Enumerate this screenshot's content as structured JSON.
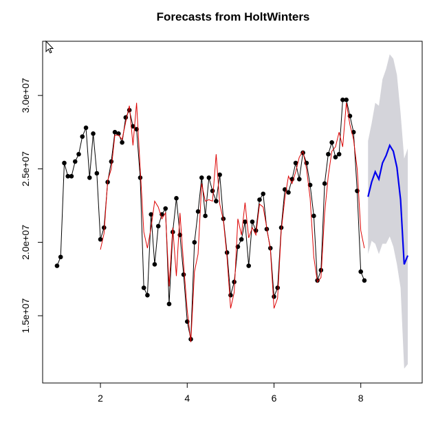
{
  "chart_data": {
    "type": "line",
    "title": "Forecasts from HoltWinters",
    "x": [
      1,
      1.083,
      1.167,
      1.25,
      1.333,
      1.417,
      1.5,
      1.583,
      1.667,
      1.75,
      1.833,
      1.917,
      2,
      2.083,
      2.167,
      2.25,
      2.333,
      2.417,
      2.5,
      2.583,
      2.667,
      2.75,
      2.833,
      2.917,
      3,
      3.083,
      3.167,
      3.25,
      3.333,
      3.417,
      3.5,
      3.583,
      3.667,
      3.75,
      3.833,
      3.917,
      4,
      4.083,
      4.167,
      4.25,
      4.333,
      4.417,
      4.5,
      4.583,
      4.667,
      4.75,
      4.833,
      4.917,
      5,
      5.083,
      5.167,
      5.25,
      5.333,
      5.417,
      5.5,
      5.583,
      5.667,
      5.75,
      5.833,
      5.917,
      6,
      6.083,
      6.167,
      6.25,
      6.333,
      6.417,
      6.5,
      6.583,
      6.667,
      6.75,
      6.833,
      6.917,
      7,
      7.083,
      7.167,
      7.25,
      7.333,
      7.417,
      7.5,
      7.583,
      7.667,
      7.75,
      7.833,
      7.917,
      8,
      8.083,
      8.167,
      8.25,
      8.333,
      8.417,
      8.5,
      8.583,
      8.667,
      8.75,
      8.833,
      8.917,
      9,
      9.083
    ],
    "band": {
      "color": "#d4d4da",
      "lower": [
        null,
        null,
        null,
        null,
        null,
        null,
        null,
        null,
        null,
        null,
        null,
        null,
        null,
        null,
        null,
        null,
        null,
        null,
        null,
        null,
        null,
        null,
        null,
        null,
        null,
        null,
        null,
        null,
        null,
        null,
        null,
        null,
        null,
        null,
        null,
        null,
        null,
        null,
        null,
        null,
        null,
        null,
        null,
        null,
        null,
        null,
        null,
        null,
        null,
        null,
        null,
        null,
        null,
        null,
        null,
        null,
        null,
        null,
        null,
        null,
        null,
        null,
        null,
        null,
        null,
        null,
        null,
        null,
        null,
        null,
        null,
        null,
        null,
        null,
        null,
        null,
        null,
        null,
        null,
        null,
        null,
        null,
        null,
        null,
        null,
        null,
        19200000,
        20100000,
        19900000,
        19200000,
        19900000,
        19900000,
        20400000,
        19700000,
        18500000,
        16900000,
        11400000,
        11700000
      ],
      "upper": [
        null,
        null,
        null,
        null,
        null,
        null,
        null,
        null,
        null,
        null,
        null,
        null,
        null,
        null,
        null,
        null,
        null,
        null,
        null,
        null,
        null,
        null,
        null,
        null,
        null,
        null,
        null,
        null,
        null,
        null,
        null,
        null,
        null,
        null,
        null,
        null,
        null,
        null,
        null,
        null,
        null,
        null,
        null,
        null,
        null,
        null,
        null,
        null,
        null,
        null,
        null,
        null,
        null,
        null,
        null,
        null,
        null,
        null,
        null,
        null,
        null,
        null,
        null,
        null,
        null,
        null,
        null,
        null,
        null,
        null,
        null,
        null,
        null,
        null,
        null,
        null,
        null,
        null,
        null,
        null,
        null,
        null,
        null,
        null,
        null,
        null,
        26900000,
        28100000,
        29500000,
        29300000,
        31100000,
        31800000,
        32800000,
        32500000,
        31400000,
        28800000,
        25700000,
        26400000
      ]
    },
    "series": [
      {
        "color": "#000000",
        "markers": true,
        "width": 1,
        "values": [
          18400000,
          19000000,
          25400000,
          24500000,
          24500000,
          25500000,
          26000000,
          27200000,
          27800000,
          24400000,
          27400000,
          24700000,
          20200000,
          21000000,
          24100000,
          25500000,
          27500000,
          27400000,
          26800000,
          28500000,
          29000000,
          27900000,
          27700000,
          24400000,
          16900000,
          16400000,
          21900000,
          18500000,
          21100000,
          21900000,
          22300000,
          15800000,
          20700000,
          23000000,
          20500000,
          17800000,
          14600000,
          13400000,
          20000000,
          22100000,
          24400000,
          21800000,
          24400000,
          23500000,
          22800000,
          24600000,
          21600000,
          19300000,
          16400000,
          17300000,
          19700000,
          20200000,
          21400000,
          18400000,
          21400000,
          20800000,
          22900000,
          23300000,
          20900000,
          19600000,
          16300000,
          16900000,
          21000000,
          23600000,
          23400000,
          24300000,
          25400000,
          24300000,
          26100000,
          25400000,
          23900000,
          21800000,
          17400000,
          18100000,
          24000000,
          26000000,
          26800000,
          25800000,
          26000000,
          29700000,
          29700000,
          28600000,
          27500000,
          23500000,
          18000000,
          17400000,
          null,
          null,
          null,
          null,
          null,
          null,
          null,
          null,
          null,
          null,
          null,
          null
        ]
      },
      {
        "color": "#dd0000",
        "markers": false,
        "width": 1,
        "values": [
          null,
          null,
          null,
          null,
          null,
          null,
          null,
          null,
          null,
          null,
          null,
          null,
          19500000,
          20600000,
          24200000,
          25000000,
          27300000,
          27300000,
          27000000,
          28200000,
          29300000,
          26600000,
          29500000,
          25000000,
          20700000,
          19600000,
          21000000,
          22800000,
          22400000,
          21600000,
          22000000,
          17000000,
          21000000,
          17700000,
          22000000,
          18500000,
          15400000,
          13200000,
          18000000,
          19200000,
          24000000,
          22800000,
          22900000,
          22800000,
          26000000,
          22600000,
          21500000,
          19000000,
          15500000,
          16600000,
          21600000,
          20500000,
          22700000,
          20300000,
          21000000,
          20500000,
          22600000,
          22400000,
          21000000,
          19500000,
          15500000,
          16200000,
          20800000,
          23000000,
          24500000,
          24000000,
          24800000,
          25800000,
          26200000,
          25000000,
          23000000,
          19000000,
          17300000,
          17600000,
          22000000,
          24500000,
          26200000,
          26500000,
          27500000,
          26500000,
          29500000,
          28000000,
          27000000,
          25000000,
          20800000,
          19600000,
          null,
          null,
          null,
          null,
          null,
          null,
          null,
          null,
          null,
          null,
          null,
          null
        ]
      },
      {
        "color": "#0000ee",
        "markers": false,
        "width": 2.2,
        "values": [
          null,
          null,
          null,
          null,
          null,
          null,
          null,
          null,
          null,
          null,
          null,
          null,
          null,
          null,
          null,
          null,
          null,
          null,
          null,
          null,
          null,
          null,
          null,
          null,
          null,
          null,
          null,
          null,
          null,
          null,
          null,
          null,
          null,
          null,
          null,
          null,
          null,
          null,
          null,
          null,
          null,
          null,
          null,
          null,
          null,
          null,
          null,
          null,
          null,
          null,
          null,
          null,
          null,
          null,
          null,
          null,
          null,
          null,
          null,
          null,
          null,
          null,
          null,
          null,
          null,
          null,
          null,
          null,
          null,
          null,
          null,
          null,
          null,
          null,
          null,
          null,
          null,
          null,
          null,
          null,
          null,
          null,
          null,
          null,
          null,
          null,
          23100000,
          24100000,
          24800000,
          24300000,
          25400000,
          25900000,
          26600000,
          26200000,
          25100000,
          22900000,
          18500000,
          19100000
        ]
      }
    ],
    "xlim": [
      0.668,
      9.415
    ],
    "xticks": [
      2,
      4,
      6,
      8
    ],
    "ylim": [
      10420000,
      33690000
    ],
    "yticks": [
      {
        "value": 15000000,
        "label": "1.5e+07"
      },
      {
        "value": 20000000,
        "label": "2.0e+07"
      },
      {
        "value": 25000000,
        "label": "2.5e+07"
      },
      {
        "value": 30000000,
        "label": "3.0e+07"
      }
    ]
  }
}
